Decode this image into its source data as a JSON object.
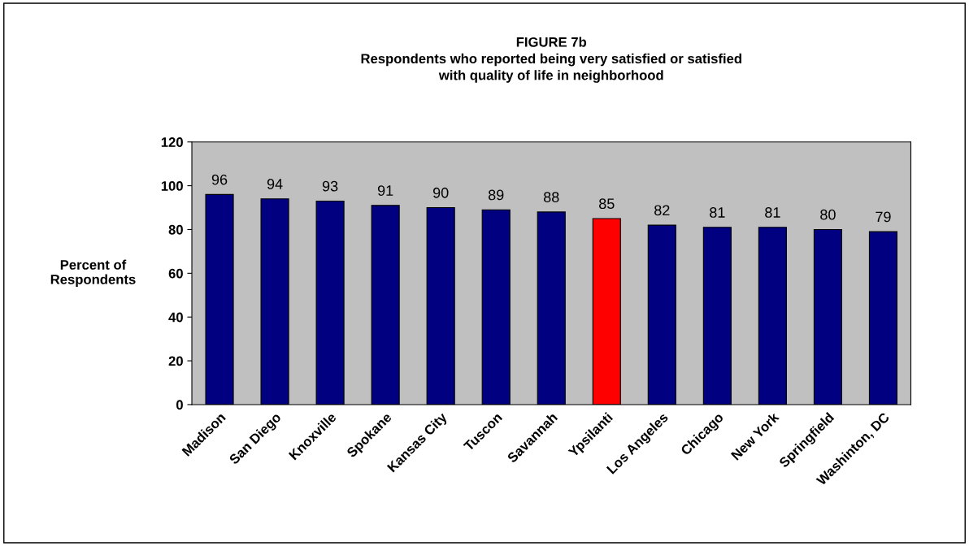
{
  "chart_data": {
    "type": "bar",
    "title": "FIGURE 7b\nRespondents who reported being very satisfied or satisfied\nwith quality of life in neighborhood",
    "ylabel": "Percent of\nRespondents",
    "categories": [
      "Madison",
      "San Diego",
      "Knoxville",
      "Spokane",
      "Kansas City",
      "Tuscon",
      "Savannah",
      "Ypsilanti",
      "Los Angeles",
      "Chicago",
      "New York",
      "Springfield",
      "Washinton, DC"
    ],
    "values": [
      96,
      94,
      93,
      91,
      90,
      89,
      88,
      85,
      82,
      81,
      81,
      80,
      79
    ],
    "colors": [
      "#000080",
      "#000080",
      "#000080",
      "#000080",
      "#000080",
      "#000080",
      "#000080",
      "#ff0000",
      "#000080",
      "#000080",
      "#000080",
      "#000080",
      "#000080"
    ],
    "ylim": [
      0,
      120
    ],
    "yticks": [
      0,
      20,
      40,
      60,
      80,
      100,
      120
    ],
    "data_labels": true,
    "grid": false
  }
}
